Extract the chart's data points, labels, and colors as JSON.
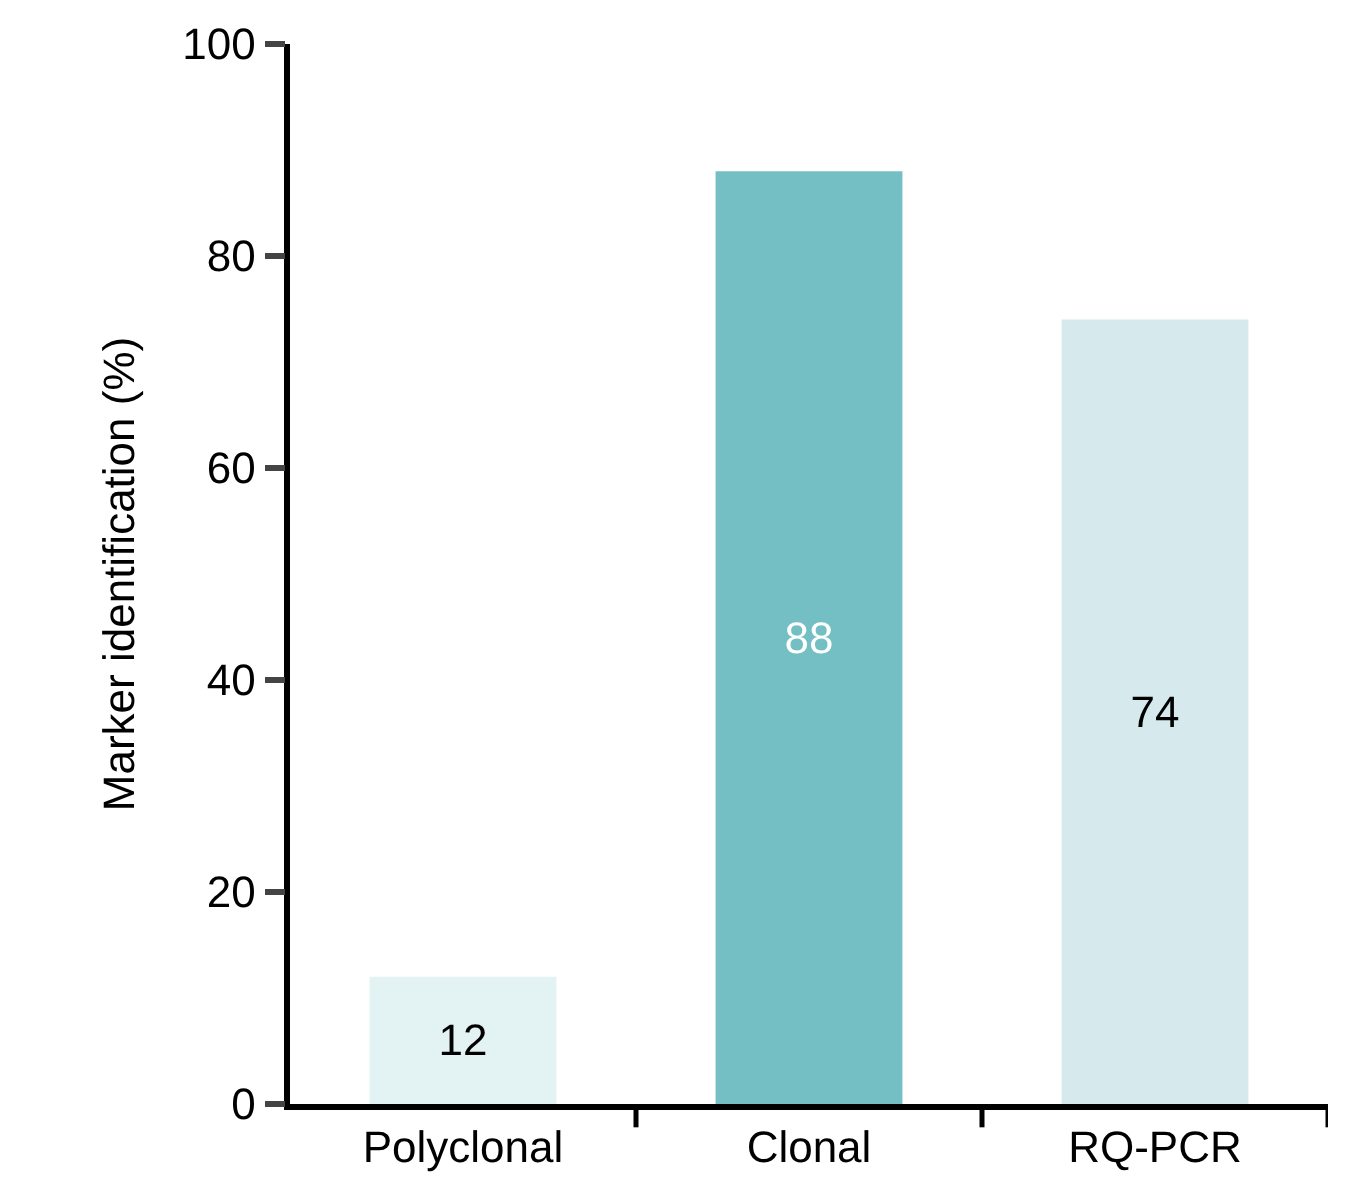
{
  "chart_data": {
    "type": "bar",
    "ylabel": "Marker identification (%)",
    "categories": [
      "Polyclonal",
      "Clonal",
      "RQ-PCR"
    ],
    "values": [
      12,
      88,
      74
    ],
    "colors": [
      "#e3f2f2",
      "#74bfc4",
      "#d6eaee"
    ],
    "ylim": [
      0,
      100
    ],
    "yticks": [
      0,
      20,
      40,
      60,
      80,
      100
    ],
    "data_labels": true
  }
}
